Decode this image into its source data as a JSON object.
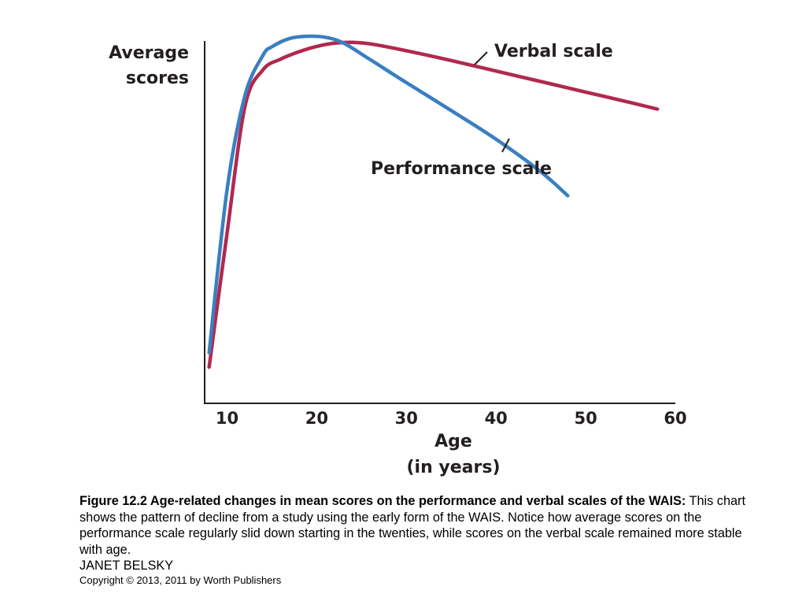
{
  "chart_data": {
    "type": "line",
    "ylabel_lines": [
      "Average",
      "scores"
    ],
    "xlabel_lines": [
      "Age",
      "(in years)"
    ],
    "x_ticks": [
      10,
      20,
      30,
      40,
      50,
      60
    ],
    "xlim": [
      7.5,
      60
    ],
    "ylim": [
      0,
      100
    ],
    "y_ticks_shown": false,
    "grid": false,
    "legend": "none",
    "series": [
      {
        "name": "Verbal scale",
        "color": "#b0294e",
        "x": [
          8,
          10,
          12,
          14,
          16,
          18,
          20,
          22,
          24,
          26,
          30,
          35,
          40,
          45,
          50,
          55,
          58
        ],
        "y": [
          10,
          47,
          82,
          92,
          95,
          97,
          98.5,
          99.4,
          99.6,
          99.2,
          97.3,
          94.6,
          91.7,
          88.8,
          85.9,
          83.0,
          81.2
        ]
      },
      {
        "name": "Performance scale",
        "color": "#3a7fc1",
        "x": [
          8,
          10,
          12,
          14,
          15,
          17,
          19,
          21,
          23,
          26,
          30,
          35,
          40,
          45,
          48
        ],
        "y": [
          14,
          59,
          85,
          96,
          98.4,
          100.7,
          101.3,
          101.0,
          99.4,
          94.8,
          88.5,
          80.8,
          72.9,
          63.9,
          57.3
        ]
      }
    ]
  },
  "caption": {
    "bold": "Figure 12.2 Age-related changes in mean scores on the performance and verbal scales of the WAIS:",
    "text": " This chart shows the pattern of decline from a study using the early form of the WAIS. Notice how average scores on the performance scale regularly slid down starting in the twenties, while scores on the verbal scale remained more stable with age."
  },
  "author": "JANET BELSKY",
  "copyright": "Copyright © 2013, 2011 by Worth Publishers"
}
